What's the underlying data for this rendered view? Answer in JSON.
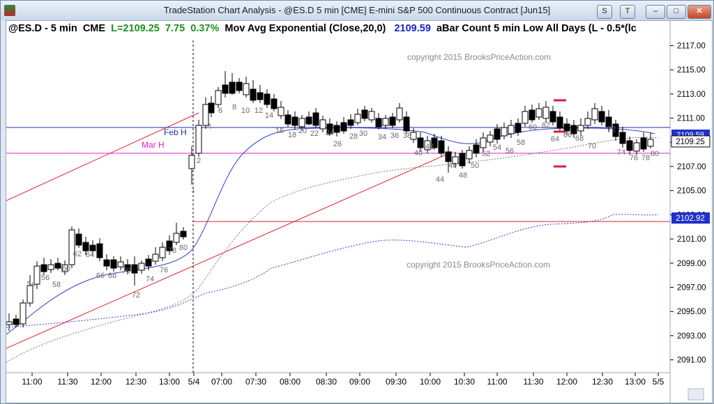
{
  "window": {
    "title": "TradeStation Chart Analysis - @ES.D 5 min [CME] E-mini S&P 500 Continuous Contract [Jun15]",
    "buttons": {
      "s_label": "S",
      "t_label": "T",
      "minimize": "–",
      "maximize": "□",
      "close": "✕"
    }
  },
  "status": {
    "symbol": "@ES.D - 5 min",
    "exchange": "CME",
    "last": "L=2109.25",
    "change": "7.75",
    "change_pct": "0.37%",
    "study": "Mov Avg Exponential (Close,20,0)",
    "study_value": "2109.59",
    "study2": "aBar Count 5 min Low All Days (L - 0.5*(lc"
  },
  "watermarks": [
    "copyright 2015 BrooksPriceAction.com",
    "copyright 2015 BrooksPriceAction.com"
  ],
  "annotations": {
    "feb_h": "Feb H",
    "mar_h": "Mar H"
  },
  "price_axis": {
    "ticks": [
      "2117.00",
      "2115.00",
      "2113.00",
      "2111.00",
      "2109.00",
      "2107.00",
      "2105.00",
      "2103.00",
      "2101.00",
      "2099.00",
      "2097.00",
      "2095.00",
      "2093.00",
      "2091.00"
    ],
    "last_price_label": "2109.25",
    "hidden_label": "2109.59",
    "level_label": "2102.92"
  },
  "time_axis": [
    "11:00",
    "11:30",
    "12:00",
    "12:30",
    "13:00",
    "5/4",
    "07:00",
    "07:30",
    "08:00",
    "08:30",
    "09:00",
    "09:30",
    "10:00",
    "10:30",
    "11:00",
    "11:30",
    "12:00",
    "12:30",
    "13:00",
    "5/5"
  ],
  "bar_labels": [
    "54",
    "56",
    "58",
    "60",
    "62",
    "64",
    "66",
    "68",
    "70",
    "72",
    "74",
    "76",
    "78",
    "80",
    "1",
    "2",
    "4",
    "6",
    "8",
    "10",
    "12",
    "14",
    "16",
    "18",
    "20",
    "22",
    "24",
    "26",
    "28",
    "30",
    "34",
    "36",
    "38",
    "40",
    "42",
    "44",
    "46",
    "48",
    "50",
    "52",
    "54",
    "56",
    "58",
    "60",
    "62",
    "64",
    "66",
    "68",
    "70",
    "72",
    "74",
    "76",
    "78",
    "80"
  ],
  "chart_data": {
    "type": "candlestick",
    "ylim": [
      2090.5,
      2118
    ],
    "colors": {
      "ema": "#2b3ec8",
      "trend": "#e0202a",
      "feb_line": "#1c2ea8",
      "mar_line": "#e020e0",
      "level": "#d81c36"
    }
  }
}
